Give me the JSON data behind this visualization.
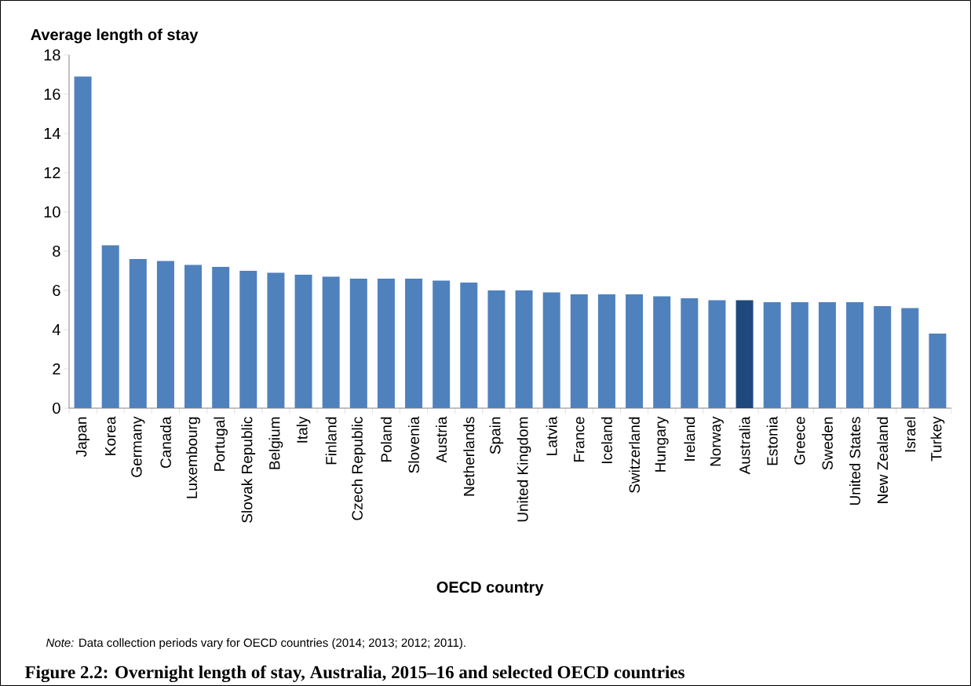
{
  "chart_data": {
    "type": "bar",
    "title": "Figure 2.2: Overnight length of stay, Australia, 2015–16 and selected OECD countries",
    "ylabel": "Average length of stay",
    "xlabel": "OECD country",
    "annotations": [
      "*Note:* Data collection periods vary for OECD countries (2014; 2013; 2012; 2011)."
    ],
    "categories": [
      "Japan",
      "Korea",
      "Germany",
      "Canada",
      "Luxembourg",
      "Portugal",
      "Slovak Republic",
      "Belgium",
      "Italy",
      "Finland",
      "Czech Republic",
      "Poland",
      "Slovenia",
      "Austria",
      "Netherlands",
      "Spain",
      "United Kingdom",
      "Latvia",
      "France",
      "Iceland",
      "Switzerland",
      "Hungary",
      "Ireland",
      "Norway",
      "Australia",
      "Estonia",
      "Greece",
      "Sweden",
      "United States",
      "New Zealand",
      "Israel",
      "Turkey"
    ],
    "values": [
      16.9,
      8.3,
      7.6,
      7.5,
      7.3,
      7.2,
      7.0,
      6.9,
      6.8,
      6.7,
      6.6,
      6.6,
      6.6,
      6.5,
      6.4,
      6.0,
      6.0,
      5.9,
      5.8,
      5.8,
      5.8,
      5.7,
      5.6,
      5.5,
      5.5,
      5.4,
      5.4,
      5.4,
      5.4,
      5.2,
      5.1,
      3.8
    ],
    "colors": [
      "#4f81bd",
      "#4f81bd",
      "#4f81bd",
      "#4f81bd",
      "#4f81bd",
      "#4f81bd",
      "#4f81bd",
      "#4f81bd",
      "#4f81bd",
      "#4f81bd",
      "#4f81bd",
      "#4f81bd",
      "#4f81bd",
      "#4f81bd",
      "#4f81bd",
      "#4f81bd",
      "#4f81bd",
      "#4f81bd",
      "#4f81bd",
      "#4f81bd",
      "#4f81bd",
      "#4f81bd",
      "#4f81bd",
      "#4f81bd",
      "#1f497d",
      "#4f81bd",
      "#4f81bd",
      "#4f81bd",
      "#4f81bd",
      "#4f81bd",
      "#4f81bd",
      "#4f81bd"
    ],
    "ylim": [
      0,
      18
    ],
    "yticks": [
      0,
      2,
      4,
      6,
      8,
      10,
      12,
      14,
      16,
      18
    ]
  }
}
